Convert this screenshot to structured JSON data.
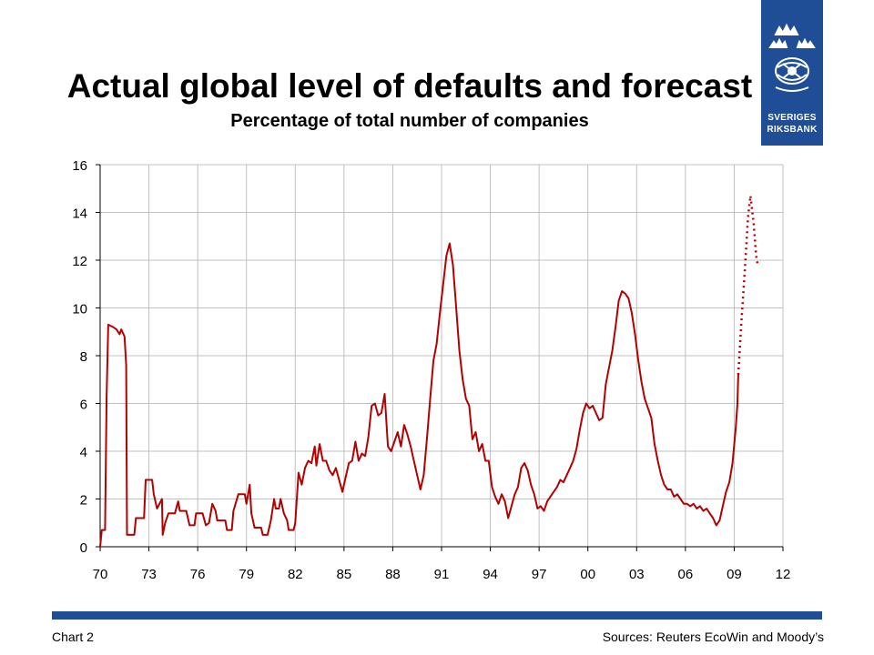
{
  "header": {
    "title": "Actual global level of defaults and forecast",
    "subtitle": "Percentage of total number of companies"
  },
  "logo": {
    "line1": "SVERIGES",
    "line2": "RIKSBANK",
    "color": "#1f4e96"
  },
  "footer": {
    "chart_label": "Chart 2",
    "sources": "Sources: Reuters EcoWin and Moody’s"
  },
  "colors": {
    "series": "#b30000",
    "accent_bar": "#1f4e96",
    "grid": "#c0c0c0"
  },
  "chart_data": {
    "type": "line",
    "title": "Actual global level of defaults and forecast",
    "subtitle": "Percentage of total number of companies",
    "x_ticks": [
      "70",
      "73",
      "76",
      "79",
      "82",
      "85",
      "88",
      "91",
      "94",
      "97",
      "00",
      "03",
      "06",
      "09",
      "12"
    ],
    "y_ticks": [
      "0",
      "2",
      "4",
      "6",
      "8",
      "10",
      "12",
      "14",
      "16"
    ],
    "xlim": [
      1970,
      2012
    ],
    "ylim": [
      0,
      16
    ],
    "grid": true,
    "series": [
      {
        "style": "solid",
        "points": [
          [
            1970.0,
            0.0
          ],
          [
            1970.1,
            0.7
          ],
          [
            1970.3,
            0.7
          ],
          [
            1970.4,
            6.3
          ],
          [
            1970.5,
            9.3
          ],
          [
            1970.8,
            9.2
          ],
          [
            1971.0,
            9.1
          ],
          [
            1971.2,
            8.9
          ],
          [
            1971.3,
            9.1
          ],
          [
            1971.5,
            8.8
          ],
          [
            1971.6,
            7.6
          ],
          [
            1971.65,
            0.5
          ],
          [
            1972.1,
            0.5
          ],
          [
            1972.2,
            1.2
          ],
          [
            1972.7,
            1.2
          ],
          [
            1972.8,
            2.8
          ],
          [
            1973.2,
            2.8
          ],
          [
            1973.3,
            2.2
          ],
          [
            1973.5,
            1.6
          ],
          [
            1973.8,
            2.0
          ],
          [
            1973.85,
            0.5
          ],
          [
            1974.0,
            1.0
          ],
          [
            1974.2,
            1.4
          ],
          [
            1974.6,
            1.4
          ],
          [
            1974.8,
            1.9
          ],
          [
            1974.9,
            1.5
          ],
          [
            1975.3,
            1.5
          ],
          [
            1975.5,
            0.9
          ],
          [
            1975.8,
            0.9
          ],
          [
            1975.9,
            1.4
          ],
          [
            1976.3,
            1.4
          ],
          [
            1976.5,
            0.9
          ],
          [
            1976.7,
            1.0
          ],
          [
            1976.9,
            1.8
          ],
          [
            1977.1,
            1.5
          ],
          [
            1977.2,
            1.1
          ],
          [
            1977.7,
            1.1
          ],
          [
            1977.8,
            0.7
          ],
          [
            1978.1,
            0.7
          ],
          [
            1978.2,
            1.5
          ],
          [
            1978.5,
            2.2
          ],
          [
            1978.9,
            2.2
          ],
          [
            1979.0,
            1.8
          ],
          [
            1979.2,
            2.6
          ],
          [
            1979.3,
            1.4
          ],
          [
            1979.5,
            0.8
          ],
          [
            1979.9,
            0.8
          ],
          [
            1980.0,
            0.5
          ],
          [
            1980.3,
            0.5
          ],
          [
            1980.5,
            1.1
          ],
          [
            1980.7,
            2.0
          ],
          [
            1980.8,
            1.6
          ],
          [
            1981.0,
            1.6
          ],
          [
            1981.1,
            2.0
          ],
          [
            1981.3,
            1.4
          ],
          [
            1981.5,
            1.1
          ],
          [
            1981.6,
            0.7
          ],
          [
            1981.9,
            0.7
          ],
          [
            1982.0,
            1.0
          ],
          [
            1982.2,
            3.1
          ],
          [
            1982.4,
            2.6
          ],
          [
            1982.6,
            3.3
          ],
          [
            1982.8,
            3.6
          ],
          [
            1983.0,
            3.5
          ],
          [
            1983.2,
            4.2
          ],
          [
            1983.3,
            3.4
          ],
          [
            1983.5,
            4.3
          ],
          [
            1983.7,
            3.6
          ],
          [
            1983.9,
            3.6
          ],
          [
            1984.1,
            3.2
          ],
          [
            1984.3,
            3.0
          ],
          [
            1984.5,
            3.3
          ],
          [
            1984.7,
            2.8
          ],
          [
            1984.9,
            2.3
          ],
          [
            1985.1,
            2.9
          ],
          [
            1985.3,
            3.5
          ],
          [
            1985.5,
            3.6
          ],
          [
            1985.7,
            4.4
          ],
          [
            1985.9,
            3.6
          ],
          [
            1986.1,
            3.9
          ],
          [
            1986.3,
            3.8
          ],
          [
            1986.5,
            4.6
          ],
          [
            1986.7,
            5.9
          ],
          [
            1986.9,
            6.0
          ],
          [
            1987.1,
            5.5
          ],
          [
            1987.3,
            5.6
          ],
          [
            1987.5,
            6.4
          ],
          [
            1987.6,
            5.3
          ],
          [
            1987.7,
            4.2
          ],
          [
            1987.9,
            4.0
          ],
          [
            1988.1,
            4.4
          ],
          [
            1988.3,
            4.8
          ],
          [
            1988.5,
            4.2
          ],
          [
            1988.7,
            5.1
          ],
          [
            1988.9,
            4.7
          ],
          [
            1989.1,
            4.2
          ],
          [
            1989.3,
            3.6
          ],
          [
            1989.5,
            3.0
          ],
          [
            1989.7,
            2.4
          ],
          [
            1989.9,
            3.0
          ],
          [
            1990.1,
            4.5
          ],
          [
            1990.3,
            6.2
          ],
          [
            1990.5,
            7.8
          ],
          [
            1990.7,
            8.5
          ],
          [
            1990.9,
            9.8
          ],
          [
            1991.1,
            11.0
          ],
          [
            1991.3,
            12.2
          ],
          [
            1991.5,
            12.7
          ],
          [
            1991.7,
            11.8
          ],
          [
            1991.9,
            10.0
          ],
          [
            1992.1,
            8.2
          ],
          [
            1992.3,
            7.0
          ],
          [
            1992.5,
            6.2
          ],
          [
            1992.7,
            5.9
          ],
          [
            1992.9,
            4.5
          ],
          [
            1993.1,
            4.8
          ],
          [
            1993.3,
            4.0
          ],
          [
            1993.5,
            4.3
          ],
          [
            1993.7,
            3.6
          ],
          [
            1993.9,
            3.6
          ],
          [
            1994.1,
            2.5
          ],
          [
            1994.3,
            2.1
          ],
          [
            1994.5,
            1.8
          ],
          [
            1994.7,
            2.2
          ],
          [
            1994.9,
            1.9
          ],
          [
            1995.1,
            1.2
          ],
          [
            1995.3,
            1.7
          ],
          [
            1995.5,
            2.2
          ],
          [
            1995.7,
            2.5
          ],
          [
            1995.9,
            3.3
          ],
          [
            1996.1,
            3.5
          ],
          [
            1996.3,
            3.2
          ],
          [
            1996.5,
            2.6
          ],
          [
            1996.7,
            2.2
          ],
          [
            1996.9,
            1.6
          ],
          [
            1997.1,
            1.7
          ],
          [
            1997.3,
            1.5
          ],
          [
            1997.5,
            1.9
          ],
          [
            1997.7,
            2.1
          ],
          [
            1997.9,
            2.3
          ],
          [
            1998.1,
            2.5
          ],
          [
            1998.3,
            2.8
          ],
          [
            1998.5,
            2.7
          ],
          [
            1998.7,
            3.0
          ],
          [
            1998.9,
            3.3
          ],
          [
            1999.1,
            3.6
          ],
          [
            1999.3,
            4.1
          ],
          [
            1999.5,
            4.9
          ],
          [
            1999.7,
            5.6
          ],
          [
            1999.9,
            6.0
          ],
          [
            2000.1,
            5.8
          ],
          [
            2000.3,
            5.9
          ],
          [
            2000.5,
            5.6
          ],
          [
            2000.7,
            5.3
          ],
          [
            2000.9,
            5.4
          ],
          [
            2001.1,
            6.8
          ],
          [
            2001.3,
            7.5
          ],
          [
            2001.5,
            8.2
          ],
          [
            2001.7,
            9.2
          ],
          [
            2001.9,
            10.3
          ],
          [
            2002.1,
            10.7
          ],
          [
            2002.3,
            10.6
          ],
          [
            2002.5,
            10.4
          ],
          [
            2002.7,
            9.8
          ],
          [
            2002.9,
            8.9
          ],
          [
            2003.1,
            7.8
          ],
          [
            2003.3,
            6.9
          ],
          [
            2003.5,
            6.2
          ],
          [
            2003.7,
            5.8
          ],
          [
            2003.9,
            5.4
          ],
          [
            2004.1,
            4.3
          ],
          [
            2004.3,
            3.6
          ],
          [
            2004.5,
            3.0
          ],
          [
            2004.7,
            2.6
          ],
          [
            2004.9,
            2.4
          ],
          [
            2005.1,
            2.4
          ],
          [
            2005.3,
            2.1
          ],
          [
            2005.5,
            2.2
          ],
          [
            2005.7,
            2.0
          ],
          [
            2005.9,
            1.8
          ],
          [
            2006.1,
            1.8
          ],
          [
            2006.3,
            1.7
          ],
          [
            2006.5,
            1.8
          ],
          [
            2006.7,
            1.6
          ],
          [
            2006.9,
            1.7
          ],
          [
            2007.1,
            1.5
          ],
          [
            2007.3,
            1.6
          ],
          [
            2007.5,
            1.4
          ],
          [
            2007.7,
            1.2
          ],
          [
            2007.9,
            0.9
          ],
          [
            2008.1,
            1.1
          ],
          [
            2008.3,
            1.7
          ],
          [
            2008.5,
            2.3
          ],
          [
            2008.7,
            2.7
          ],
          [
            2008.9,
            3.5
          ],
          [
            2009.1,
            5.0
          ],
          [
            2009.2,
            6.0
          ],
          [
            2009.25,
            7.2
          ]
        ]
      },
      {
        "style": "dotted",
        "points": [
          [
            2009.25,
            7.2
          ],
          [
            2009.45,
            9.5
          ],
          [
            2009.65,
            11.5
          ],
          [
            2009.85,
            13.8
          ],
          [
            2010.0,
            14.7
          ],
          [
            2010.2,
            13.5
          ],
          [
            2010.35,
            12.2
          ],
          [
            2010.45,
            11.8
          ]
        ]
      }
    ]
  }
}
